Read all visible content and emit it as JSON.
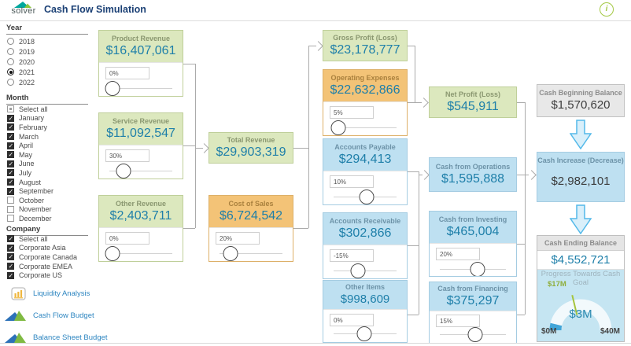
{
  "header": {
    "logo_text": "solver",
    "title": "Cash Flow Simulation",
    "info_icon_label": "i"
  },
  "sidebar": {
    "year": {
      "label": "Year",
      "options": [
        {
          "label": "2018",
          "selected": false
        },
        {
          "label": "2019",
          "selected": false
        },
        {
          "label": "2020",
          "selected": false
        },
        {
          "label": "2021",
          "selected": true
        },
        {
          "label": "2022",
          "selected": false
        }
      ]
    },
    "month": {
      "label": "Month",
      "items": [
        {
          "label": "Select all",
          "state": "indeterminate"
        },
        {
          "label": "January",
          "state": "checked"
        },
        {
          "label": "February",
          "state": "checked"
        },
        {
          "label": "March",
          "state": "checked"
        },
        {
          "label": "April",
          "state": "checked"
        },
        {
          "label": "May",
          "state": "checked"
        },
        {
          "label": "June",
          "state": "checked"
        },
        {
          "label": "July",
          "state": "checked"
        },
        {
          "label": "August",
          "state": "checked"
        },
        {
          "label": "September",
          "state": "checked"
        },
        {
          "label": "October",
          "state": "unchecked"
        },
        {
          "label": "November",
          "state": "unchecked"
        },
        {
          "label": "December",
          "state": "unchecked"
        }
      ]
    },
    "company": {
      "label": "Company",
      "items": [
        {
          "label": "Select all",
          "state": "checked"
        },
        {
          "label": "Corporate Asia",
          "state": "checked"
        },
        {
          "label": "Corporate Canada",
          "state": "checked"
        },
        {
          "label": "Corporate EMEA",
          "state": "checked"
        },
        {
          "label": "Corporate US",
          "state": "checked"
        }
      ]
    },
    "links": [
      {
        "label": "Liquidity Analysis",
        "icon": "bar-chart-icon"
      },
      {
        "label": "Cash Flow Budget",
        "icon": "solver-mark-icon"
      },
      {
        "label": "Balance Sheet Budget",
        "icon": "solver-mark-icon"
      }
    ]
  },
  "flow": {
    "product_revenue": {
      "title": "Product Revenue",
      "value": "$16,407,061",
      "pct": "0%",
      "handle": "5%"
    },
    "service_revenue": {
      "title": "Service Revenue",
      "value": "$11,092,547",
      "pct": "30%",
      "handle": "22%"
    },
    "other_revenue": {
      "title": "Other Revenue",
      "value": "$2,403,711",
      "pct": "0%",
      "handle": "5%"
    },
    "total_revenue": {
      "title": "Total Revenue",
      "value": "$29,903,319"
    },
    "cost_of_sales": {
      "title": "Cost of Sales",
      "value": "$6,724,542",
      "pct": "20%",
      "handle": "17%"
    },
    "gross_profit": {
      "title": "Gross Profit (Loss)",
      "value": "$23,178,777"
    },
    "operating_expenses": {
      "title": "Operating Expenses",
      "value": "$22,632,866",
      "pct": "5%",
      "handle": "8%"
    },
    "net_profit": {
      "title": "Net Profit (Loss)",
      "value": "$545,911"
    },
    "accounts_payable": {
      "title": "Accounts Payable",
      "value": "$294,413",
      "pct": "10%",
      "handle": "52%"
    },
    "accounts_receivable": {
      "title": "Accounts Receivable",
      "value": "$302,866",
      "pct": "-15%",
      "handle": "39%"
    },
    "other_items": {
      "title": "Other Items",
      "value": "$998,609",
      "pct": "0%",
      "handle": "49%"
    },
    "cash_operations": {
      "title": "Cash from Operations",
      "value": "$1,595,888"
    },
    "cash_investing": {
      "title": "Cash from Investing",
      "value": "$465,004",
      "pct": "20%",
      "handle": "57%"
    },
    "cash_financing": {
      "title": "Cash from Financing",
      "value": "$375,297",
      "pct": "15%",
      "handle": "53%"
    }
  },
  "right_panel": {
    "cash_beginning": {
      "title": "Cash Beginning Balance",
      "value": "$1,570,620"
    },
    "cash_increase": {
      "title": "Cash Increase (Decrease)",
      "value": "$2,982,101"
    },
    "cash_ending": {
      "title": "Cash Ending Balance",
      "value": "$4,552,721"
    },
    "gauge": {
      "title": "Progress Towards Cash Goal",
      "min_label": "$0M",
      "max_label": "$40M",
      "value_label": "$3M",
      "target_label": "$17M",
      "value": 3,
      "target": 17,
      "max": 40
    }
  },
  "colors": {
    "green_box": "#DCE8BE",
    "orange_box": "#F3C377",
    "blue_box": "#BEE0F1",
    "gray_box": "#E8E8E8",
    "value_text": "#1E7FA9",
    "link_text": "#2E86C1",
    "gauge_fill": "#41A5D8",
    "gauge_target": "#A6C43C",
    "info_icon": "#A3C842",
    "title_navy": "#1B4075"
  }
}
